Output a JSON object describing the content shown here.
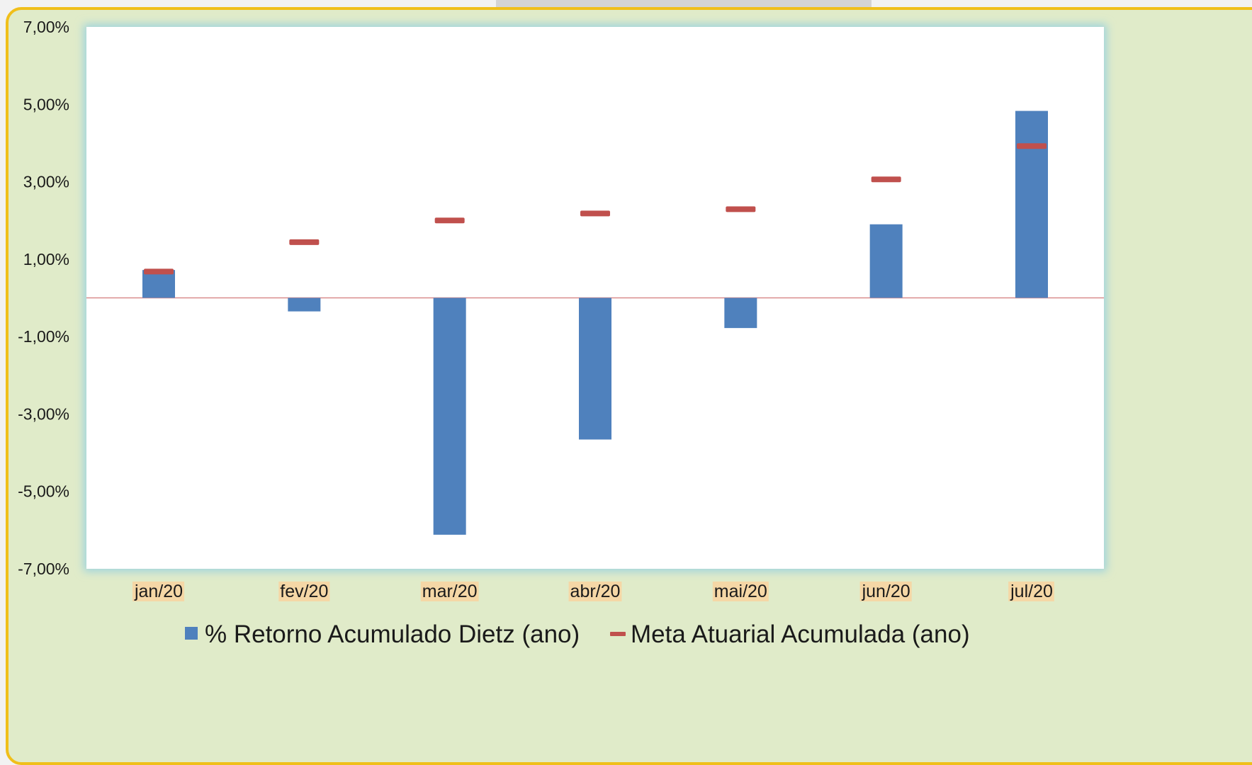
{
  "chart_data": {
    "type": "bar",
    "categories": [
      "jan/20",
      "fev/20",
      "mar/20",
      "abr/20",
      "mai/20",
      "jun/20",
      "jul/20"
    ],
    "series": [
      {
        "name": "% Retorno Acumulado Dietz (ano)",
        "type": "bar",
        "color": "#4f81bd",
        "values": [
          0.72,
          -0.35,
          -6.12,
          -3.66,
          -0.78,
          1.9,
          4.83
        ]
      },
      {
        "name": "Meta Atuarial Acumulada (ano)",
        "type": "marker",
        "color": "#c0504d",
        "values": [
          0.68,
          1.44,
          2.0,
          2.18,
          2.29,
          3.06,
          3.92
        ]
      }
    ],
    "y_ticks": [
      "7,00%",
      "5,00%",
      "3,00%",
      "1,00%",
      "-1,00%",
      "-3,00%",
      "-5,00%",
      "-7,00%"
    ],
    "ylim": [
      -7,
      7
    ],
    "legend_position": "bottom",
    "grid": false
  },
  "colors": {
    "frame_border": "#f0bf1a",
    "frame_background": "#e0ebc9",
    "plot_background": "#ffffff",
    "plot_glow": "#9fd3dd",
    "zero_line": "#d98c8c",
    "category_label_highlight": "#f5d7a6"
  }
}
